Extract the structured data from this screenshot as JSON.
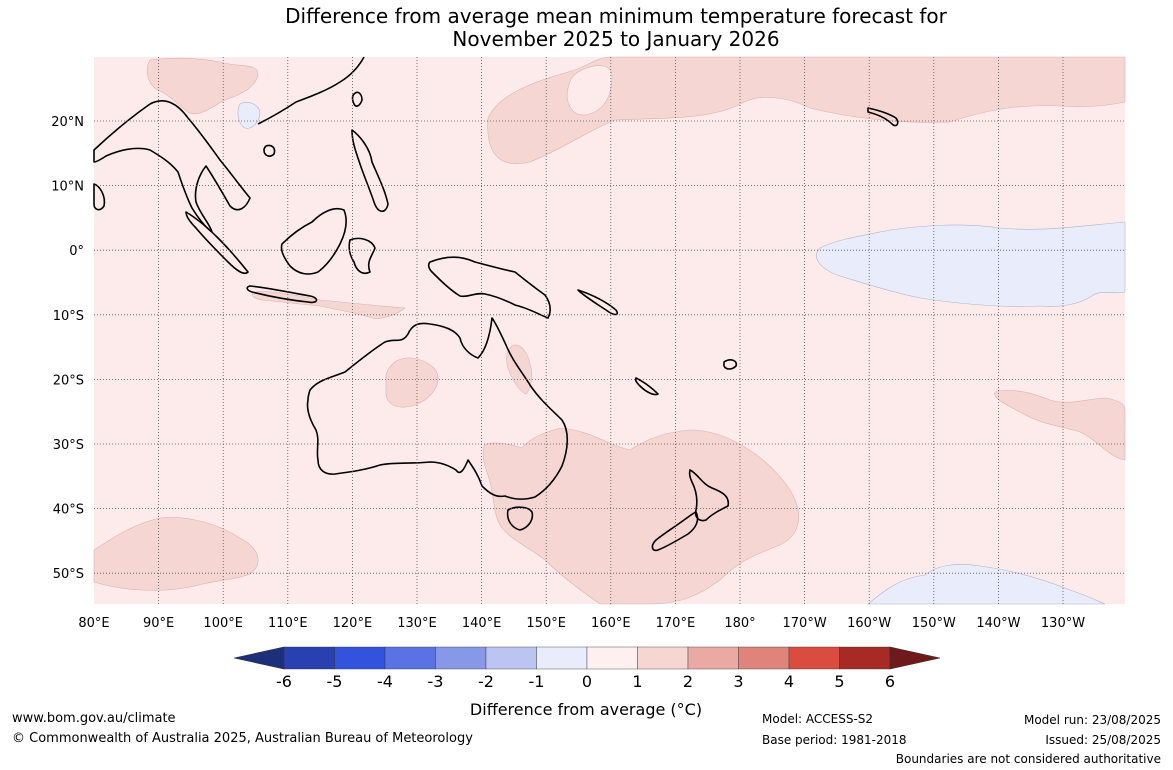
{
  "title": {
    "line1": "Difference from average mean minimum temperature forecast for",
    "line2": "November 2025 to January 2026"
  },
  "map": {
    "lon_labels": [
      "80°E",
      "90°E",
      "100°E",
      "110°E",
      "120°E",
      "130°E",
      "140°E",
      "150°E",
      "160°E",
      "170°E",
      "180°",
      "170°W",
      "160°W",
      "150°W",
      "140°W",
      "130°W"
    ],
    "lat_labels": [
      "20°N",
      "10°N",
      "0°",
      "10°S",
      "20°S",
      "30°S",
      "40°S",
      "50°S"
    ],
    "background_color": "#fcebea",
    "warm_anomaly_color": "#f6d6d3",
    "cool_anomaly_color": "#e9ecfb",
    "coastline_color": "#000000"
  },
  "colorbar": {
    "ticks": [
      "-6",
      "-5",
      "-4",
      "-3",
      "-2",
      "-1",
      "0",
      "1",
      "2",
      "3",
      "4",
      "5",
      "6"
    ],
    "colors": [
      "#1c2f7a",
      "#2840b0",
      "#3353de",
      "#5b72e4",
      "#8898e8",
      "#bcc4f2",
      "#e9ecfb",
      "#fdf0ee",
      "#f6d6d3",
      "#eaa9a3",
      "#e0847b",
      "#d94c3f",
      "#a82a24",
      "#6e1a1a"
    ],
    "label": "Difference from average (°C)"
  },
  "footer": {
    "url": "www.bom.gov.au/climate",
    "copyright": "© Commonwealth of Australia 2025, Australian Bureau of Meteorology",
    "model": "Model: ACCESS-S2",
    "base_period": "Base period: 1981-2018",
    "model_run": "Model run: 23/08/2025",
    "issued": "Issued: 25/08/2025",
    "disclaimer": "Boundaries are not considered authoritative"
  }
}
